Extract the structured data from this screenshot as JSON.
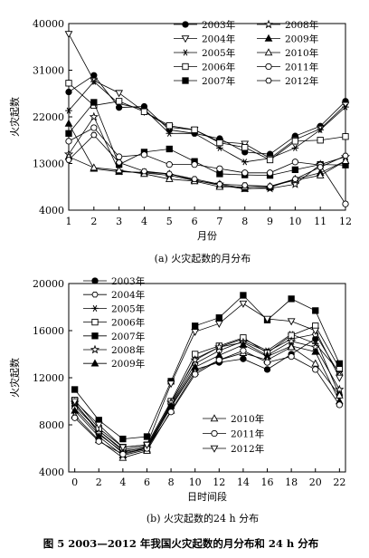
{
  "figure_caption": "图 5   2003—2012 年我国火灾起数的月分布和 24 h 分布",
  "chart_data": [
    {
      "type": "line",
      "caption": "(a) 火灾起数的月分布",
      "xlabel": "月份",
      "ylabel": "火灾起数",
      "xlim": [
        1,
        12
      ],
      "ylim": [
        4000,
        40000
      ],
      "x": [
        1,
        2,
        3,
        4,
        5,
        6,
        7,
        8,
        9,
        10,
        11,
        12
      ],
      "x_ticks": [
        "1",
        "2",
        "3",
        "4",
        "5",
        "6",
        "7",
        "8",
        "9",
        "10",
        "11",
        "12"
      ],
      "y_ticks": [
        "4000",
        "13000",
        "22000",
        "31000",
        "40000"
      ],
      "grid": false,
      "legend_position": "top-right",
      "series": [
        {
          "name": "2003年",
          "marker": "circle-filled",
          "values": [
            26800,
            30000,
            23800,
            24000,
            19500,
            18800,
            17800,
            15200,
            14800,
            18300,
            20200,
            25000
          ]
        },
        {
          "name": "2004年",
          "marker": "tri-down-open",
          "values": [
            38000,
            29000,
            26600,
            23000,
            20000,
            19500,
            17200,
            16800,
            14000,
            17600,
            19700,
            24300
          ]
        },
        {
          "name": "2005年",
          "marker": "asterisk",
          "values": [
            23200,
            28800,
            24500,
            23500,
            18800,
            18800,
            16000,
            13300,
            14000,
            16000,
            19500,
            23900
          ]
        },
        {
          "name": "2006年",
          "marker": "square-open",
          "values": [
            28500,
            24200,
            25000,
            23000,
            20300,
            19500,
            17000,
            16100,
            13700,
            17300,
            17500,
            18200
          ]
        },
        {
          "name": "2007年",
          "marker": "square-filled",
          "values": [
            18800,
            24800,
            12800,
            15200,
            15800,
            13400,
            11000,
            10800,
            10700,
            11800,
            12800,
            12700
          ]
        },
        {
          "name": "2008年",
          "marker": "star-open",
          "values": [
            14800,
            22000,
            11500,
            11200,
            10700,
            9700,
            9000,
            8200,
            8200,
            9000,
            12800,
            14300
          ]
        },
        {
          "name": "2009年",
          "marker": "tri-up-filled",
          "values": [
            20700,
            12000,
            11400,
            11300,
            11000,
            9800,
            8800,
            8100,
            8400,
            10000,
            11200,
            13500
          ]
        },
        {
          "name": "2010年",
          "marker": "tri-up-open",
          "values": [
            14300,
            12200,
            11700,
            11000,
            10000,
            9600,
            8500,
            8500,
            8600,
            9800,
            10700,
            13500
          ]
        },
        {
          "name": "2011年",
          "marker": "circle-open",
          "values": [
            17300,
            19900,
            14300,
            14700,
            12800,
            12800,
            12000,
            11200,
            11200,
            13300,
            12700,
            5200
          ]
        },
        {
          "name": "2012年",
          "marker": "hexagon-open",
          "values": [
            13700,
            18500,
            13200,
            11500,
            11000,
            10000,
            9000,
            8800,
            8600,
            10000,
            12300,
            14500
          ]
        }
      ]
    },
    {
      "type": "line",
      "caption": "(b) 火灾起数的24 h 分布",
      "xlabel": "日时间段",
      "ylabel": "火灾起数",
      "xlim": [
        -0.5,
        22.5
      ],
      "ylim": [
        4000,
        20000
      ],
      "x": [
        0,
        2,
        4,
        6,
        8,
        10,
        12,
        14,
        16,
        18,
        20,
        22
      ],
      "x_ticks": [
        "0",
        "2",
        "4",
        "6",
        "8",
        "10",
        "12",
        "14",
        "16",
        "18",
        "20",
        "22"
      ],
      "y_ticks": [
        "4000",
        "8000",
        "12000",
        "16000",
        "20000"
      ],
      "grid": false,
      "legend_position": "top-left and bottom-right",
      "series": [
        {
          "name": "2003年",
          "marker": "circle-filled",
          "values": [
            9600,
            7500,
            5800,
            6000,
            9500,
            12700,
            13300,
            13600,
            12700,
            14000,
            15300,
            10500
          ]
        },
        {
          "name": "2004年",
          "marker": "hexagon-open",
          "values": [
            9400,
            7200,
            5700,
            6100,
            9700,
            13200,
            14300,
            15100,
            14200,
            15300,
            15700,
            12300
          ]
        },
        {
          "name": "2005年",
          "marker": "asterisk",
          "values": [
            9800,
            7500,
            5900,
            6200,
            9800,
            13600,
            14600,
            15300,
            14300,
            15700,
            14900,
            12500
          ]
        },
        {
          "name": "2006年",
          "marker": "square-open",
          "values": [
            10100,
            7700,
            6100,
            6300,
            10000,
            14000,
            14700,
            15400,
            14100,
            15600,
            16400,
            12800
          ]
        },
        {
          "name": "2007年",
          "marker": "square-filled",
          "values": [
            11000,
            8400,
            6800,
            7000,
            11700,
            16400,
            17100,
            19000,
            16900,
            18700,
            17700,
            13200
          ]
        },
        {
          "name": "2008年",
          "marker": "star-open",
          "values": [
            9900,
            7300,
            5600,
            6000,
            9900,
            13500,
            14600,
            15000,
            13900,
            15100,
            14600,
            11000
          ]
        },
        {
          "name": "2009年",
          "marker": "tri-up-filled",
          "values": [
            9200,
            7000,
            5400,
            5900,
            9600,
            12900,
            13900,
            14800,
            13800,
            14700,
            14200,
            10000
          ]
        },
        {
          "name": "2010年",
          "marker": "tri-up-open",
          "values": [
            8800,
            6700,
            5200,
            5800,
            9200,
            12500,
            13500,
            14100,
            13500,
            14600,
            13200,
            10500
          ]
        },
        {
          "name": "2011年",
          "marker": "circle-open",
          "values": [
            8600,
            6600,
            5500,
            6000,
            9100,
            12300,
            13500,
            14300,
            13300,
            13800,
            12700,
            9700
          ]
        },
        {
          "name": "2012年",
          "marker": "tri-down-open",
          "values": [
            10000,
            8000,
            6100,
            6300,
            11500,
            15900,
            16600,
            18300,
            17000,
            16800,
            16000,
            12000
          ]
        }
      ]
    }
  ]
}
